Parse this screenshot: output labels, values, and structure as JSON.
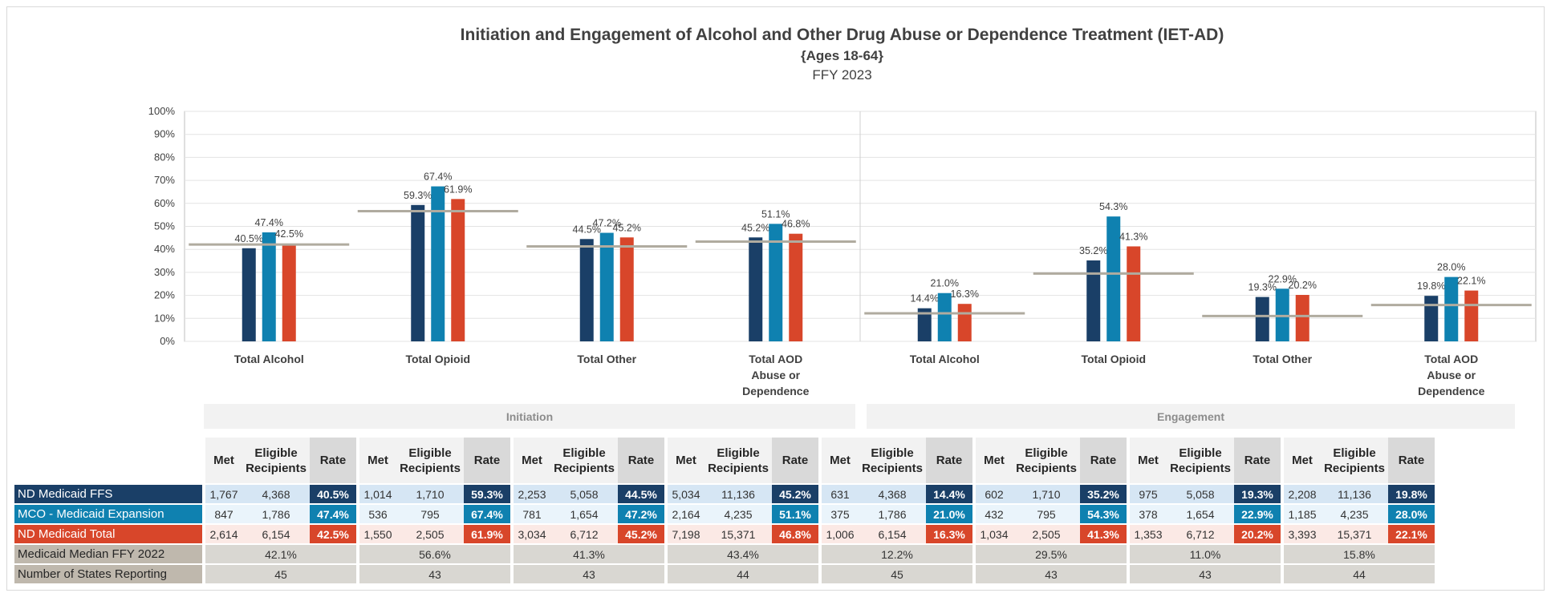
{
  "chart_data": {
    "type": "bar",
    "title": "Initiation and Engagement of Alcohol and Other Drug Abuse or Dependence Treatment (IET-AD)",
    "subtitle": "{Ages 18-64}",
    "subtitle2": "FFY 2023",
    "ylim": [
      0,
      100
    ],
    "yticks": [
      "0%",
      "10%",
      "20%",
      "30%",
      "40%",
      "50%",
      "60%",
      "70%",
      "80%",
      "90%",
      "100%"
    ],
    "categories": [
      "Total Alcohol",
      "Total Opioid",
      "Total Other",
      "Total AOD Abuse or Dependence",
      "Total Alcohol",
      "Total Opioid",
      "Total Other",
      "Total AOD Abuse or Dependence"
    ],
    "groups": [
      "Initiation",
      "Engagement"
    ],
    "series": [
      {
        "name": "ND Medicaid FFS",
        "color": "#1a3f67",
        "values": [
          40.5,
          59.3,
          44.5,
          45.2,
          14.4,
          35.2,
          19.3,
          19.8
        ],
        "labels": [
          "40.5%",
          "59.3%",
          "44.5%",
          "45.2%",
          "14.4%",
          "35.2%",
          "19.3%",
          "19.8%"
        ]
      },
      {
        "name": "MCO - Medicaid Expansion",
        "color": "#0f81b0",
        "values": [
          47.4,
          67.4,
          47.2,
          51.1,
          21.0,
          54.3,
          22.9,
          28.0
        ],
        "labels": [
          "47.4%",
          "67.4%",
          "47.2%",
          "51.1%",
          "21.0%",
          "54.3%",
          "22.9%",
          "28.0%"
        ]
      },
      {
        "name": "ND Medicaid Total",
        "color": "#d8462a",
        "values": [
          42.5,
          61.9,
          45.2,
          46.8,
          16.3,
          41.3,
          20.2,
          22.1
        ],
        "labels": [
          "42.5%",
          "61.9%",
          "45.2%",
          "46.8%",
          "16.3%",
          "41.3%",
          "20.2%",
          "22.1%"
        ]
      }
    ],
    "median": {
      "name": "Medicaid Median FFY 2022",
      "color": "#b0ab9f",
      "values": [
        42.1,
        56.6,
        41.3,
        43.4,
        12.2,
        29.5,
        11.0,
        15.8
      ]
    },
    "table": {
      "col_headers": [
        "Met",
        "Eligible Recipients",
        "Rate"
      ],
      "rows": [
        {
          "label": "ND Medicaid FFS",
          "cells": [
            [
              "1,767",
              "4,368",
              "40.5%"
            ],
            [
              "1,014",
              "1,710",
              "59.3%"
            ],
            [
              "2,253",
              "5,058",
              "44.5%"
            ],
            [
              "5,034",
              "11,136",
              "45.2%"
            ],
            [
              "631",
              "4,368",
              "14.4%"
            ],
            [
              "602",
              "1,710",
              "35.2%"
            ],
            [
              "975",
              "5,058",
              "19.3%"
            ],
            [
              "2,208",
              "11,136",
              "19.8%"
            ]
          ]
        },
        {
          "label": "MCO - Medicaid Expansion",
          "cells": [
            [
              "847",
              "1,786",
              "47.4%"
            ],
            [
              "536",
              "795",
              "67.4%"
            ],
            [
              "781",
              "1,654",
              "47.2%"
            ],
            [
              "2,164",
              "4,235",
              "51.1%"
            ],
            [
              "375",
              "1,786",
              "21.0%"
            ],
            [
              "432",
              "795",
              "54.3%"
            ],
            [
              "378",
              "1,654",
              "22.9%"
            ],
            [
              "1,185",
              "4,235",
              "28.0%"
            ]
          ]
        },
        {
          "label": "ND Medicaid Total",
          "cells": [
            [
              "2,614",
              "6,154",
              "42.5%"
            ],
            [
              "1,550",
              "2,505",
              "61.9%"
            ],
            [
              "3,034",
              "6,712",
              "45.2%"
            ],
            [
              "7,198",
              "15,371",
              "46.8%"
            ],
            [
              "1,006",
              "6,154",
              "16.3%"
            ],
            [
              "1,034",
              "2,505",
              "41.3%"
            ],
            [
              "1,353",
              "6,712",
              "20.2%"
            ],
            [
              "3,393",
              "15,371",
              "22.1%"
            ]
          ]
        }
      ],
      "summary_rows": [
        {
          "label": "Medicaid Median FFY 2022",
          "values": [
            "42.1%",
            "56.6%",
            "41.3%",
            "43.4%",
            "12.2%",
            "29.5%",
            "11.0%",
            "15.8%"
          ]
        },
        {
          "label": "Number of States Reporting",
          "values": [
            "45",
            "43",
            "43",
            "44",
            "45",
            "43",
            "43",
            "44"
          ]
        }
      ]
    }
  }
}
